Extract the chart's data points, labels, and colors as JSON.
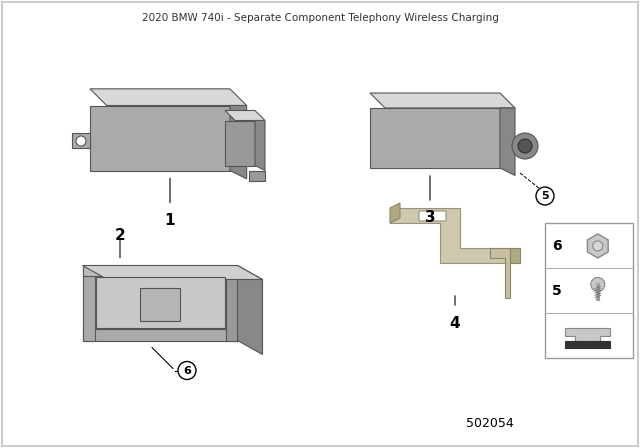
{
  "background_color": "#ffffff",
  "border_color": "#cccccc",
  "diagram_number": "502054",
  "part_numbers": [
    "1",
    "2",
    "3",
    "4",
    "5",
    "6"
  ],
  "component_colors": {
    "main": "#b8b8b8",
    "shadow": "#888888",
    "light": "#d8d8d8",
    "bracket": "#c0b89a",
    "screw": "#c0c0c0",
    "nut": "#c0c0c0"
  },
  "figsize": [
    6.4,
    4.48
  ],
  "dpi": 100
}
